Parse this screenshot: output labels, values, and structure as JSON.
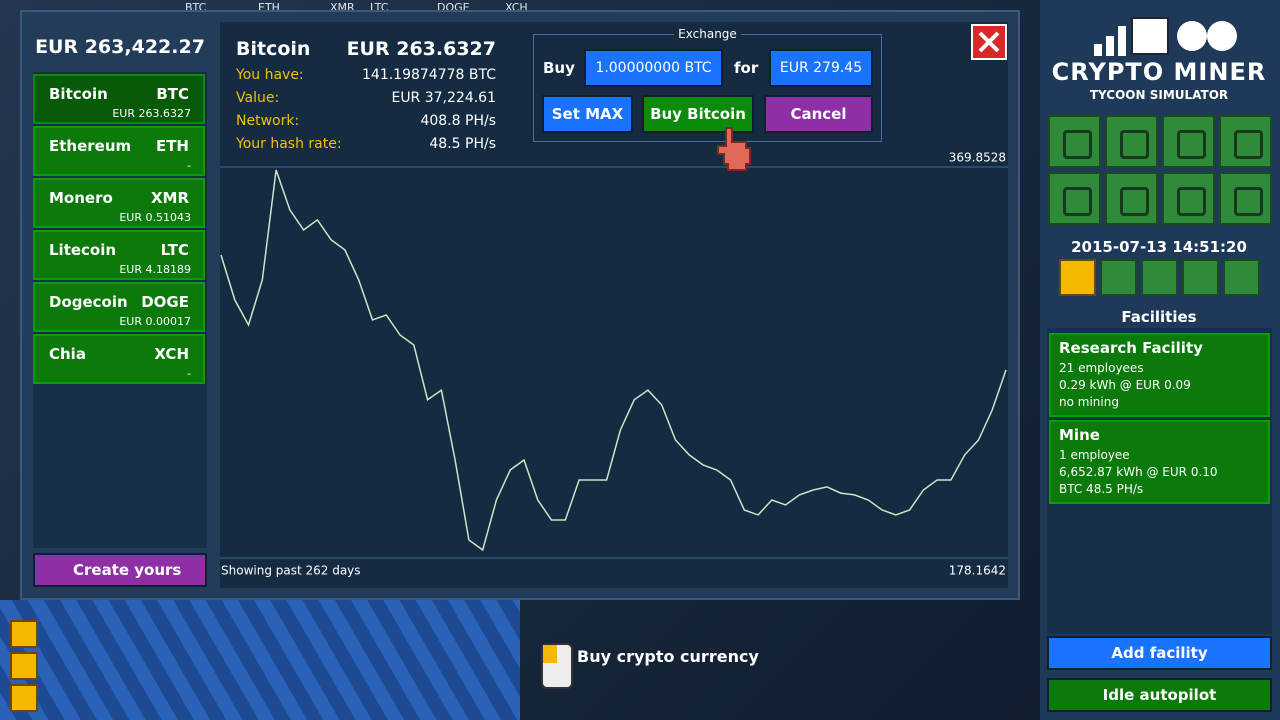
{
  "ticker": [
    "BTC",
    "ETH",
    "XMR",
    "LTC",
    "DOGE",
    "XCH"
  ],
  "balance": "EUR 263,422.27",
  "coins": [
    {
      "name": "Bitcoin",
      "symbol": "BTC",
      "price": "EUR 263.6327"
    },
    {
      "name": "Ethereum",
      "symbol": "ETH",
      "price": "-"
    },
    {
      "name": "Monero",
      "symbol": "XMR",
      "price": "EUR 0.51043"
    },
    {
      "name": "Litecoin",
      "symbol": "LTC",
      "price": "EUR 4.18189"
    },
    {
      "name": "Dogecoin",
      "symbol": "DOGE",
      "price": "EUR 0.00017"
    },
    {
      "name": "Chia",
      "symbol": "XCH",
      "price": "-"
    }
  ],
  "create_button": "Create yours",
  "detail": {
    "name": "Bitcoin",
    "price": "EUR 263.6327",
    "rows": [
      {
        "label": "You have:",
        "value": "141.19874778 BTC"
      },
      {
        "label": "Value:",
        "value": "EUR 37,224.61"
      },
      {
        "label": "Network:",
        "value": "408.8 PH/s"
      },
      {
        "label": "Your hash rate:",
        "value": "48.5 PH/s"
      }
    ]
  },
  "exchange": {
    "title": "Exchange",
    "buy_label": "Buy",
    "amount": "1.00000000 BTC",
    "for_label": "for",
    "cost": "EUR 279.45",
    "buttons": [
      "Set MAX",
      "Buy Bitcoin",
      "Cancel"
    ]
  },
  "chart_data": {
    "type": "line",
    "caption": "Showing past 262 days",
    "color": "#cfe3c6",
    "ylim": [
      178.1642,
      369.8528
    ],
    "values": [
      326.7,
      304.7,
      292.4,
      314.5,
      368.4,
      348.8,
      339.0,
      343.9,
      334.1,
      329.2,
      314.5,
      294.9,
      297.3,
      287.5,
      282.6,
      255.7,
      260.5,
      226.2,
      187.0,
      182.1,
      206.6,
      221.3,
      226.2,
      206.6,
      196.8,
      196.8,
      216.4,
      216.4,
      216.4,
      240.9,
      255.7,
      260.5,
      253.2,
      236.0,
      228.7,
      223.8,
      221.3,
      216.4,
      201.7,
      199.3,
      206.6,
      204.2,
      209.1,
      211.5,
      213.0,
      210.0,
      209.1,
      206.6,
      201.7,
      199.3,
      201.7,
      211.5,
      216.4,
      216.4,
      228.7,
      236.0,
      250.7,
      270.4
    ]
  },
  "logo": {
    "title": "CRYPTO MINER",
    "subtitle": "TYCOON SIMULATOR"
  },
  "datetime": "2015-07-13 14:51:20",
  "facilities_title": "Facilities",
  "facilities": [
    {
      "name": "Research Facility",
      "lines": [
        "21 employees",
        "0.29 kWh @ EUR 0.09",
        "no mining"
      ]
    },
    {
      "name": "Mine",
      "lines": [
        "1 employee",
        "6,652.87 kWh @ EUR 0.10",
        "BTC 48.5 PH/s"
      ]
    }
  ],
  "add_facility": "Add facility",
  "idle_autopilot": "Idle autopilot",
  "hint": "Buy crypto currency"
}
